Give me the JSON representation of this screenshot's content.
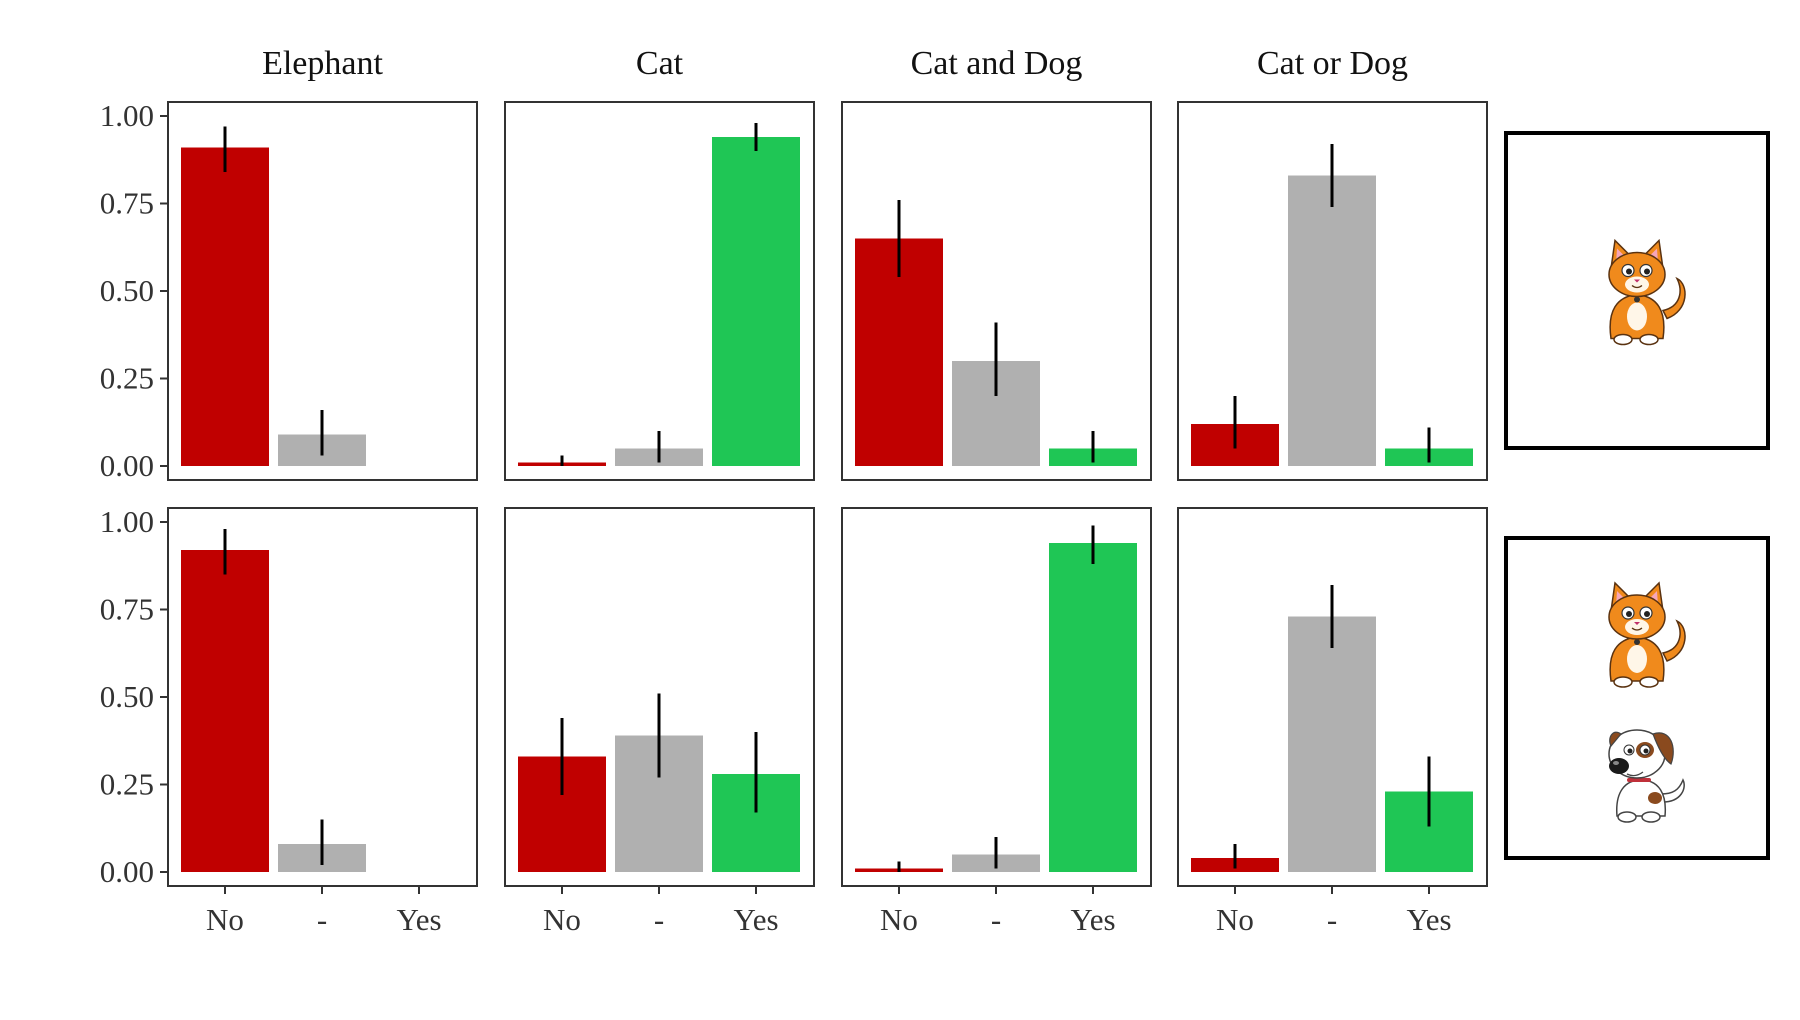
{
  "chart_data": {
    "type": "bar",
    "facet_titles": [
      "Elephant",
      "Cat",
      "Cat and Dog",
      "Cat or Dog"
    ],
    "categories": [
      "No",
      "-",
      "Yes"
    ],
    "y_ticks": [
      "0.00",
      "0.25",
      "0.50",
      "0.75",
      "1.00"
    ],
    "ylim": [
      0,
      1
    ],
    "grid": false,
    "colors": {
      "No": "#c00000",
      "-": "#b0b0b0",
      "Yes": "#1fc655",
      "error_bar": "#000000"
    },
    "rows": [
      {
        "scene_icons": [
          "cat-icon"
        ],
        "panels": [
          {
            "facet": "Elephant",
            "values": [
              0.91,
              0.09,
              0.0
            ],
            "err_low": [
              0.84,
              0.03,
              null
            ],
            "err_high": [
              0.97,
              0.16,
              null
            ]
          },
          {
            "facet": "Cat",
            "values": [
              0.01,
              0.05,
              0.94
            ],
            "err_low": [
              0.0,
              0.01,
              0.9
            ],
            "err_high": [
              0.03,
              0.1,
              0.98
            ]
          },
          {
            "facet": "Cat and Dog",
            "values": [
              0.65,
              0.3,
              0.05
            ],
            "err_low": [
              0.54,
              0.2,
              0.01
            ],
            "err_high": [
              0.76,
              0.41,
              0.1
            ]
          },
          {
            "facet": "Cat or Dog",
            "values": [
              0.12,
              0.83,
              0.05
            ],
            "err_low": [
              0.05,
              0.74,
              0.01
            ],
            "err_high": [
              0.2,
              0.92,
              0.11
            ]
          }
        ]
      },
      {
        "scene_icons": [
          "cat-icon",
          "dog-icon"
        ],
        "panels": [
          {
            "facet": "Elephant",
            "values": [
              0.92,
              0.08,
              0.0
            ],
            "err_low": [
              0.85,
              0.02,
              null
            ],
            "err_high": [
              0.98,
              0.15,
              null
            ]
          },
          {
            "facet": "Cat",
            "values": [
              0.33,
              0.39,
              0.28
            ],
            "err_low": [
              0.22,
              0.27,
              0.17
            ],
            "err_high": [
              0.44,
              0.51,
              0.4
            ]
          },
          {
            "facet": "Cat and Dog",
            "values": [
              0.01,
              0.05,
              0.94
            ],
            "err_low": [
              0.0,
              0.01,
              0.88
            ],
            "err_high": [
              0.03,
              0.1,
              0.99
            ]
          },
          {
            "facet": "Cat or Dog",
            "values": [
              0.04,
              0.73,
              0.23
            ],
            "err_low": [
              0.01,
              0.64,
              0.13
            ],
            "err_high": [
              0.08,
              0.82,
              0.33
            ]
          }
        ]
      }
    ]
  }
}
